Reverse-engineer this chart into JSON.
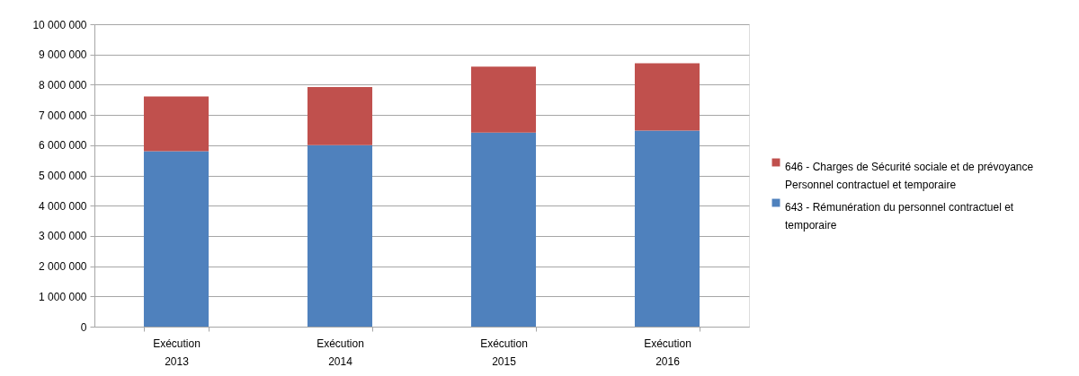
{
  "chart_data": {
    "type": "bar",
    "stacked": true,
    "categories": [
      "Exécution 2013",
      "Exécution 2014",
      "Exécution 2015",
      "Exécution 2016"
    ],
    "series": [
      {
        "name": "643 - Rémunération du personnel contractuel et temporaire",
        "color": "#4f81bd",
        "values": [
          5800000,
          6000000,
          6420000,
          6480000
        ]
      },
      {
        "name": "646 - Charges de Sécurité sociale et de prévoyance Personnel contractuel et temporaire",
        "color": "#c0504d",
        "values": [
          1810000,
          1920000,
          2180000,
          2230000
        ]
      }
    ],
    "ylim": [
      0,
      10000000
    ],
    "yticks": [
      0,
      {
        "value": 1000000,
        "label": "1 000 000"
      },
      {
        "value": 2000000,
        "label": "2 000 000"
      },
      {
        "value": 3000000,
        "label": "3 000 000"
      },
      {
        "value": 4000000,
        "label": "4 000 000"
      },
      {
        "value": 5000000,
        "label": "5 000 000"
      },
      {
        "value": 6000000,
        "label": "6 000 000"
      },
      {
        "value": 7000000,
        "label": "7 000 000"
      },
      {
        "value": 8000000,
        "label": "8 000 000"
      },
      {
        "value": 9000000,
        "label": "9 000 000"
      },
      {
        "value": 10000000,
        "label": "10 000 000"
      }
    ],
    "grid": "y",
    "legend": "right"
  }
}
